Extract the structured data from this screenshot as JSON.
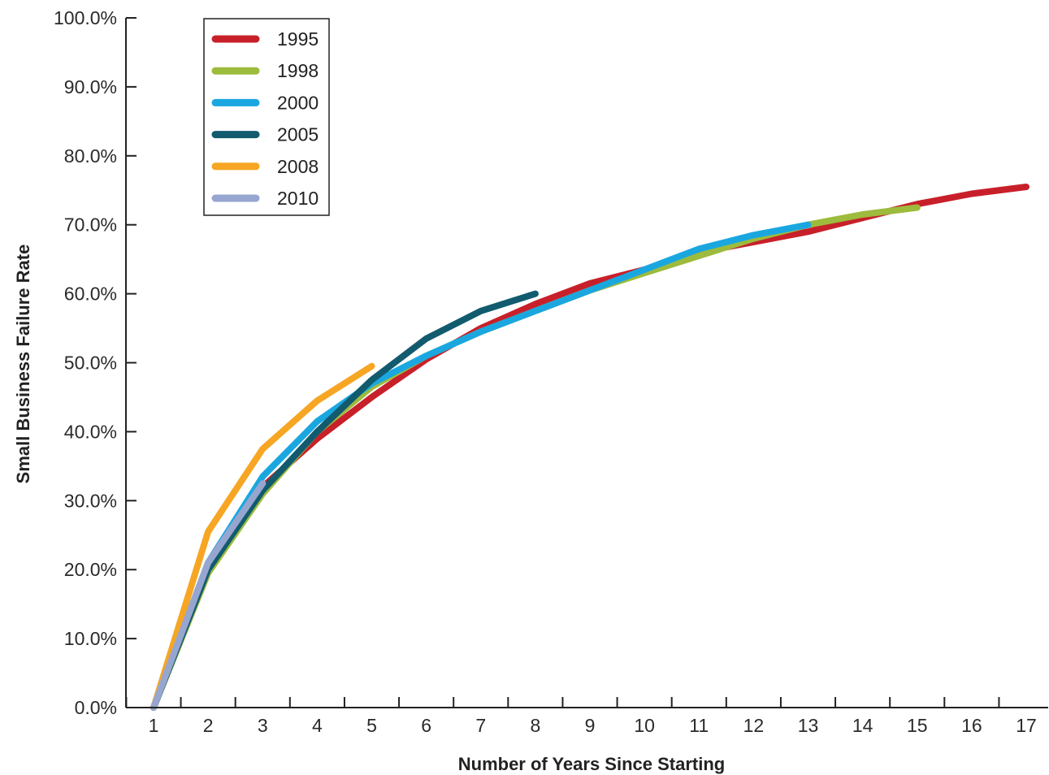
{
  "chart_data": {
    "type": "line",
    "title": "",
    "xlabel": "Number of Years Since Starting",
    "ylabel": "Small Business Failure Rate",
    "xlim": [
      1,
      17
    ],
    "ylim": [
      0,
      100
    ],
    "grid": false,
    "legend_position": "top-left",
    "y_tick_labels": [
      "0.0%",
      "10.0%",
      "20.0%",
      "30.0%",
      "40.0%",
      "50.0%",
      "60.0%",
      "70.0%",
      "80.0%",
      "90.0%",
      "100.0%"
    ],
    "x_tick_labels": [
      "1",
      "2",
      "3",
      "4",
      "5",
      "6",
      "7",
      "8",
      "9",
      "10",
      "11",
      "12",
      "13",
      "14",
      "15",
      "16",
      "17"
    ],
    "series": [
      {
        "name": "1995",
        "color": "#c8202a",
        "x": [
          1,
          2,
          3,
          4,
          5,
          6,
          7,
          8,
          9,
          10,
          11,
          12,
          13,
          14,
          15,
          16,
          17
        ],
        "y": [
          0,
          20,
          32,
          39,
          45,
          50.5,
          55,
          58.5,
          61.5,
          63.5,
          66,
          67.5,
          69,
          71,
          73,
          74.5,
          75.5
        ]
      },
      {
        "name": "1998",
        "color": "#9dbb3c",
        "x": [
          1,
          2,
          3,
          4,
          5,
          6,
          7,
          8,
          9,
          10,
          11,
          12,
          13,
          14,
          15
        ],
        "y": [
          0,
          19.5,
          31,
          40,
          46.5,
          51,
          54.5,
          57.5,
          60.5,
          63,
          65.5,
          68,
          70,
          71.5,
          72.5
        ]
      },
      {
        "name": "2000",
        "color": "#1aa7e0",
        "x": [
          1,
          2,
          3,
          4,
          5,
          6,
          7,
          8,
          9,
          10,
          11,
          12,
          13
        ],
        "y": [
          0,
          21,
          33.5,
          41.5,
          47,
          51,
          54.5,
          57.5,
          60.5,
          63.5,
          66.5,
          68.5,
          70
        ]
      },
      {
        "name": "2005",
        "color": "#125b6e",
        "x": [
          1,
          2,
          3,
          4,
          5,
          6,
          7,
          8
        ],
        "y": [
          0,
          20,
          31.5,
          40,
          47.5,
          53.5,
          57.5,
          60
        ]
      },
      {
        "name": "2008",
        "color": "#f6a623",
        "x": [
          1,
          2,
          3,
          4,
          5
        ],
        "y": [
          0,
          25.5,
          37.5,
          44.5,
          49.5
        ]
      },
      {
        "name": "2010",
        "color": "#97a6d0",
        "x": [
          1,
          2,
          3
        ],
        "y": [
          0,
          21,
          32.5
        ]
      }
    ]
  }
}
